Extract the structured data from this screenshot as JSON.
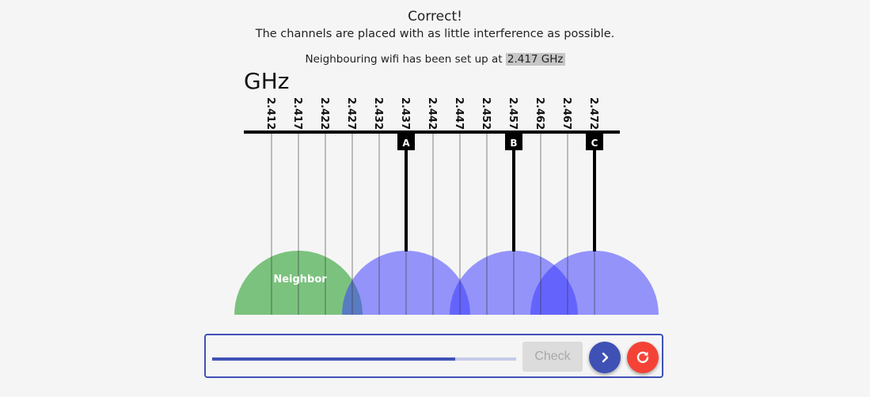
{
  "feedback": {
    "title": "Correct!",
    "message": "The channels are placed with as little interference as possible."
  },
  "neighbour": {
    "text_prefix": "Neighbouring wifi has been set up at ",
    "frequency": "2.417 GHz"
  },
  "diagram": {
    "unit_label": "GHz",
    "frequencies": [
      "2.412",
      "2.417",
      "2.422",
      "2.427",
      "2.432",
      "2.437",
      "2.442",
      "2.447",
      "2.452",
      "2.457",
      "2.462",
      "2.467",
      "2.472"
    ],
    "neighbor": {
      "label": "Neighbor",
      "channel_index": 1,
      "color": "#4caf50"
    },
    "channels": [
      {
        "label": "A",
        "channel_index": 5
      },
      {
        "label": "B",
        "channel_index": 9
      },
      {
        "label": "C",
        "channel_index": 12
      }
    ],
    "channel_color": "#3a3aff"
  },
  "controls": {
    "progress": 0.8,
    "check_label": "Check",
    "next_icon": "chevron-right-icon",
    "reset_icon": "refresh-icon"
  },
  "colors": {
    "accent": "#3f51b5",
    "danger": "#f44336"
  }
}
